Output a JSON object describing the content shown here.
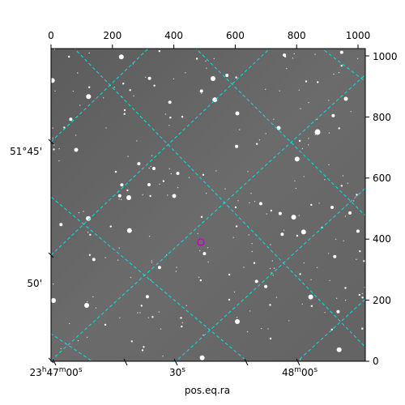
{
  "figure": {
    "pixel_axis_top": {
      "ticks": [
        {
          "label": "0",
          "value": 0
        },
        {
          "label": "200",
          "value": 200
        },
        {
          "label": "400",
          "value": 400
        },
        {
          "label": "600",
          "value": 600
        },
        {
          "label": "800",
          "value": 800
        },
        {
          "label": "1000",
          "value": 1000
        }
      ],
      "range": [
        0,
        1024
      ]
    },
    "pixel_axis_right": {
      "ticks": [
        {
          "label": "0",
          "value": 0
        },
        {
          "label": "200",
          "value": 200
        },
        {
          "label": "400",
          "value": 400
        },
        {
          "label": "600",
          "value": 600
        },
        {
          "label": "800",
          "value": 800
        },
        {
          "label": "1000",
          "value": 1000
        }
      ],
      "range": [
        0,
        1024
      ]
    },
    "ra_axis_bottom": {
      "title": "pos.eq.ra",
      "ticks": [
        {
          "label": "23h47m00s"
        },
        {
          "label": "30s"
        },
        {
          "label": "48m00s"
        }
      ]
    },
    "dec_axis_left": {
      "ticks": [
        {
          "label": "51°45'"
        },
        {
          "label": "50'"
        }
      ]
    },
    "grid_color": "#00e5e5",
    "marker_color": "#cc00cc",
    "image_background": "grayscale star field"
  }
}
